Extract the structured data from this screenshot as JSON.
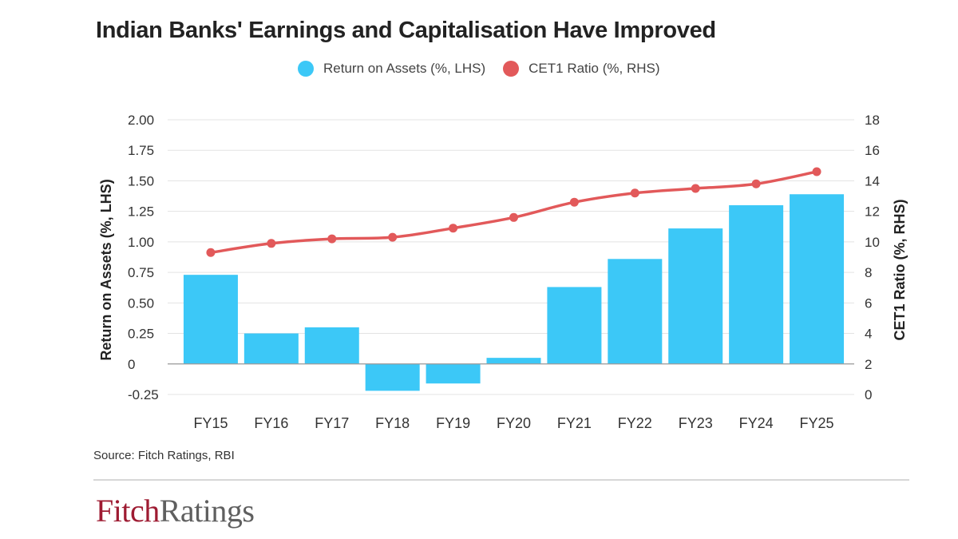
{
  "title": "Indian Banks' Earnings and Capitalisation Have Improved",
  "source": "Source: Fitch Ratings, RBI",
  "logo": {
    "part1": "Fitch",
    "part2": "Ratings"
  },
  "colors": {
    "bars": "#3cc8f7",
    "line": "#e2595a",
    "axis_text": "#333333",
    "grid": "#e3e3e3"
  },
  "chart_data": {
    "type": "bar",
    "categories": [
      "FY15",
      "FY16",
      "FY17",
      "FY18",
      "FY19",
      "FY20",
      "FY21",
      "FY22",
      "FY23",
      "FY24",
      "FY25"
    ],
    "series": [
      {
        "name": "Return on Assets (%, LHS)",
        "type": "bar",
        "axis": "left",
        "values": [
          0.73,
          0.25,
          0.3,
          -0.22,
          -0.16,
          0.05,
          0.63,
          0.86,
          1.11,
          1.3,
          1.39
        ]
      },
      {
        "name": "CET1 Ratio (%, RHS)",
        "type": "line",
        "axis": "right",
        "values": [
          9.3,
          9.9,
          10.2,
          10.3,
          10.9,
          11.6,
          12.6,
          13.2,
          13.5,
          13.8,
          14.6
        ]
      }
    ],
    "ylabel_left": "Return on Assets (%, LHS)",
    "ylabel_right": "CET1 Ratio (%, RHS)",
    "ylim_left": [
      -0.25,
      2.0
    ],
    "ylim_right": [
      0,
      18
    ],
    "yticks_left": [
      "2.00",
      "1.75",
      "1.50",
      "1.25",
      "1.00",
      "0.75",
      "0.50",
      "0.25",
      "0",
      "-0.25"
    ],
    "yticks_right": [
      "18",
      "16",
      "14",
      "12",
      "10",
      "8",
      "6",
      "4",
      "2",
      "0"
    ],
    "grid": true,
    "legend_position": "top"
  }
}
